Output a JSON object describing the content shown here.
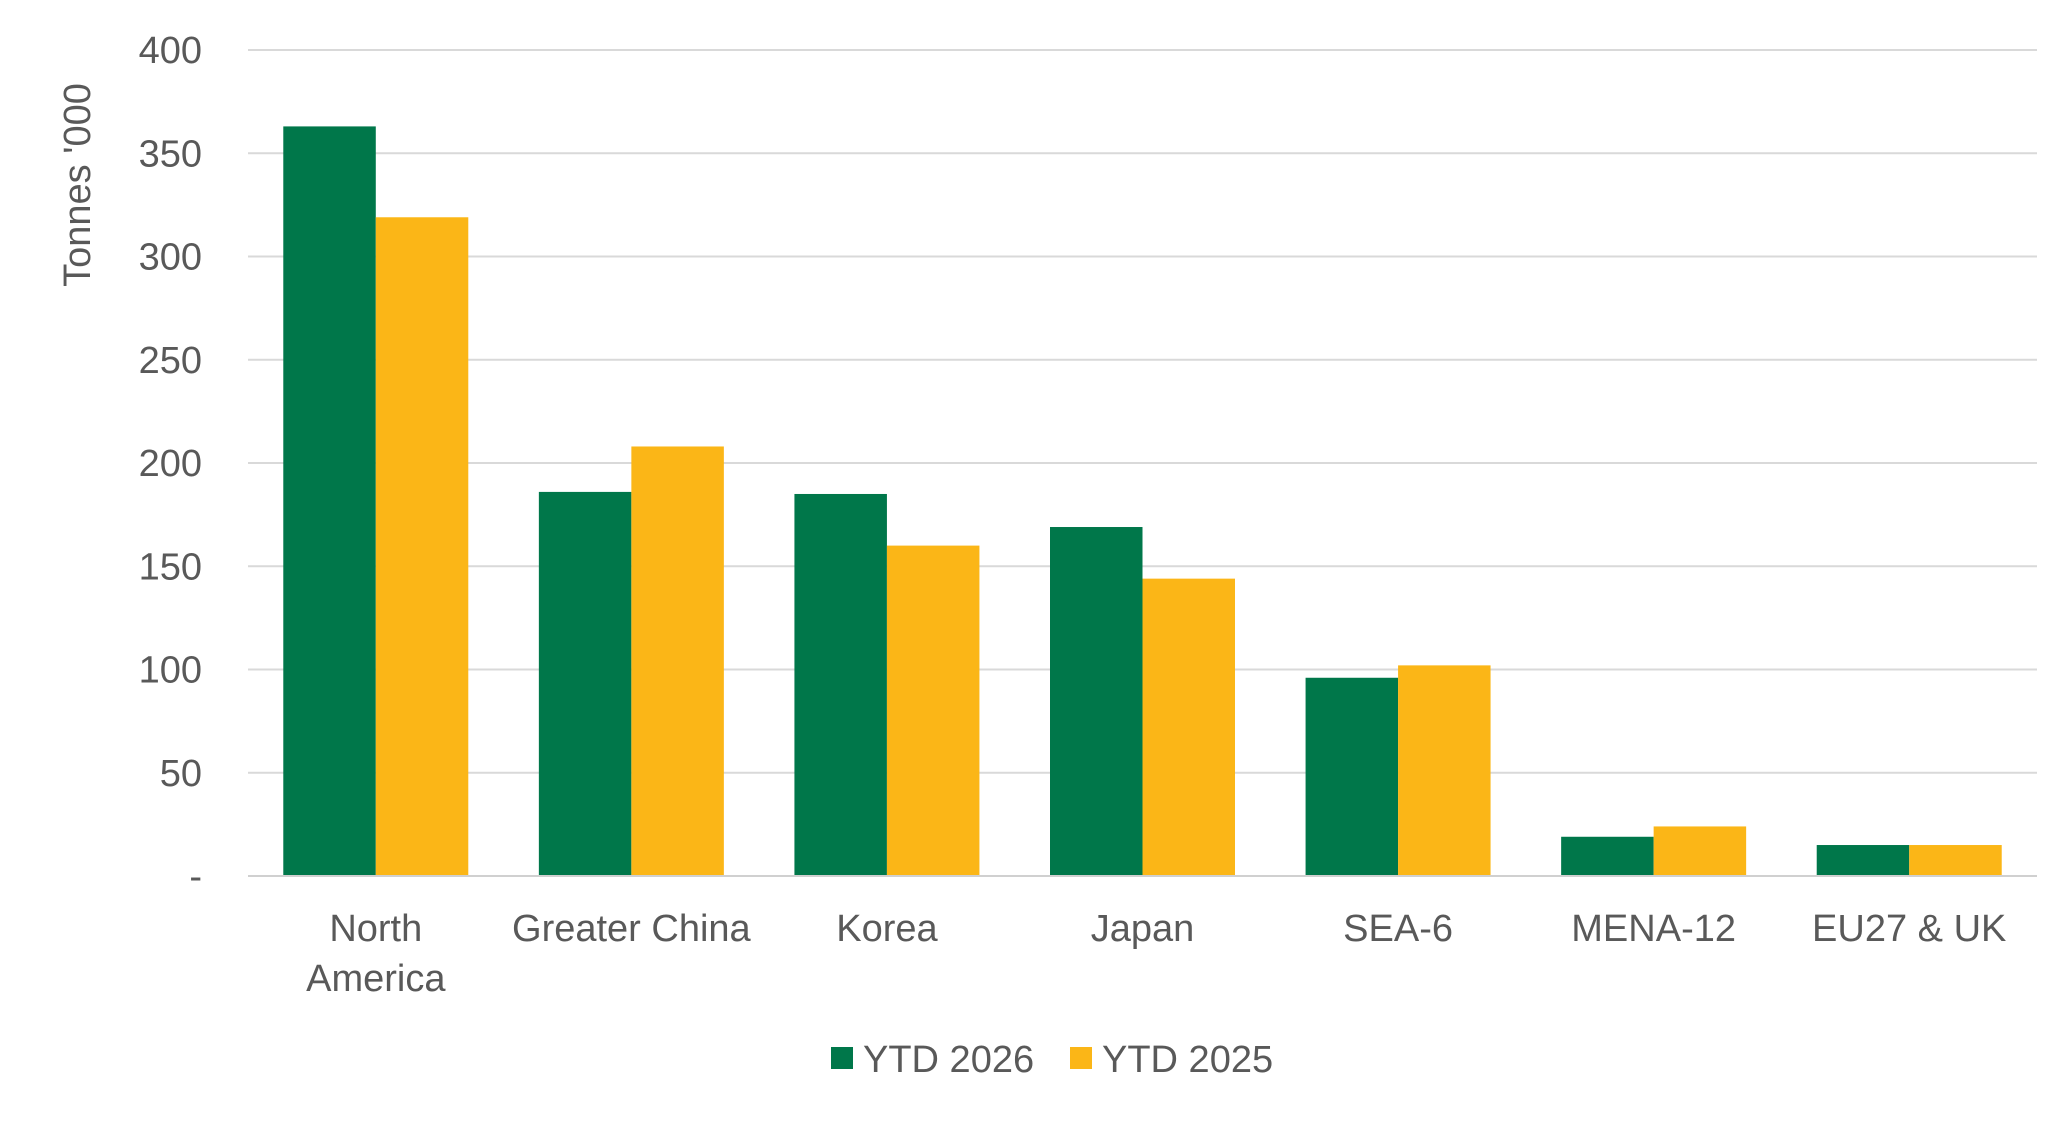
{
  "chart_data": {
    "type": "bar",
    "categories": [
      "North America",
      "Greater China",
      "Korea",
      "Japan",
      "SEA-6",
      "MENA-12",
      "EU27 & UK"
    ],
    "category_lines": [
      [
        "North",
        "America"
      ],
      [
        "Greater China"
      ],
      [
        "Korea"
      ],
      [
        "Japan"
      ],
      [
        "SEA-6"
      ],
      [
        "MENA-12"
      ],
      [
        "EU27 & UK"
      ]
    ],
    "series": [
      {
        "name": "YTD 2026",
        "color": "#00774A",
        "values": [
          363,
          186,
          185,
          169,
          96,
          19,
          15
        ]
      },
      {
        "name": "YTD 2025",
        "color": "#FBB617",
        "values": [
          319,
          208,
          160,
          144,
          102,
          24,
          15
        ]
      }
    ],
    "ylabel": "Tonnes '000",
    "xlabel": "",
    "ylim": [
      0,
      400
    ],
    "yticks": [
      0,
      50,
      100,
      150,
      200,
      250,
      300,
      350,
      400
    ],
    "ytick_labels": [
      "-",
      "50",
      "100",
      "150",
      "200",
      "250",
      "300",
      "350",
      "400"
    ],
    "grid": true,
    "legend_position": "bottom"
  }
}
